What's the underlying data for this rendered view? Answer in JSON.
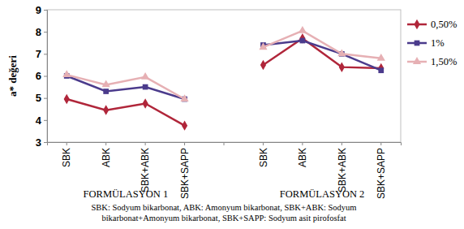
{
  "chart_data": {
    "type": "line",
    "y_label": "a* değeri",
    "categories": [
      "SBK",
      "ABK",
      "SBK+ABK",
      "SBK+SAPP",
      null,
      "SBK",
      "ABK",
      "SBK+ABK",
      "SBK+SAPP"
    ],
    "group_labels": [
      "FORMÜLASYON 1",
      "FORMÜLASYON 2"
    ],
    "caption": [
      "SBK: Sodyum bikarbonat, ABK: Amonyum bikarbonat, SBK+ABK: Sodyum",
      "bikarbonat+Amonyum bikarbonat, SBK+SAPP: Sodyum asit pirofosfat"
    ],
    "series": [
      {
        "name": "0,50%",
        "color": "#b0263a",
        "marker": "diamond",
        "values": [
          4.95,
          4.45,
          4.75,
          3.75,
          null,
          6.5,
          7.7,
          6.4,
          6.35
        ]
      },
      {
        "name": "1%",
        "color": "#4b3b8c",
        "marker": "square",
        "values": [
          6.0,
          5.3,
          5.5,
          4.95,
          null,
          7.4,
          7.6,
          7.0,
          6.25
        ]
      },
      {
        "name": "1,50%",
        "color": "#e6b0b4",
        "marker": "triangle",
        "values": [
          6.05,
          5.6,
          5.95,
          4.95,
          null,
          7.3,
          8.05,
          7.0,
          6.8
        ]
      }
    ],
    "ylim": [
      3,
      9
    ],
    "yticks": [
      3,
      4,
      5,
      6,
      7,
      8,
      9
    ],
    "grid": false,
    "legend": "right"
  }
}
